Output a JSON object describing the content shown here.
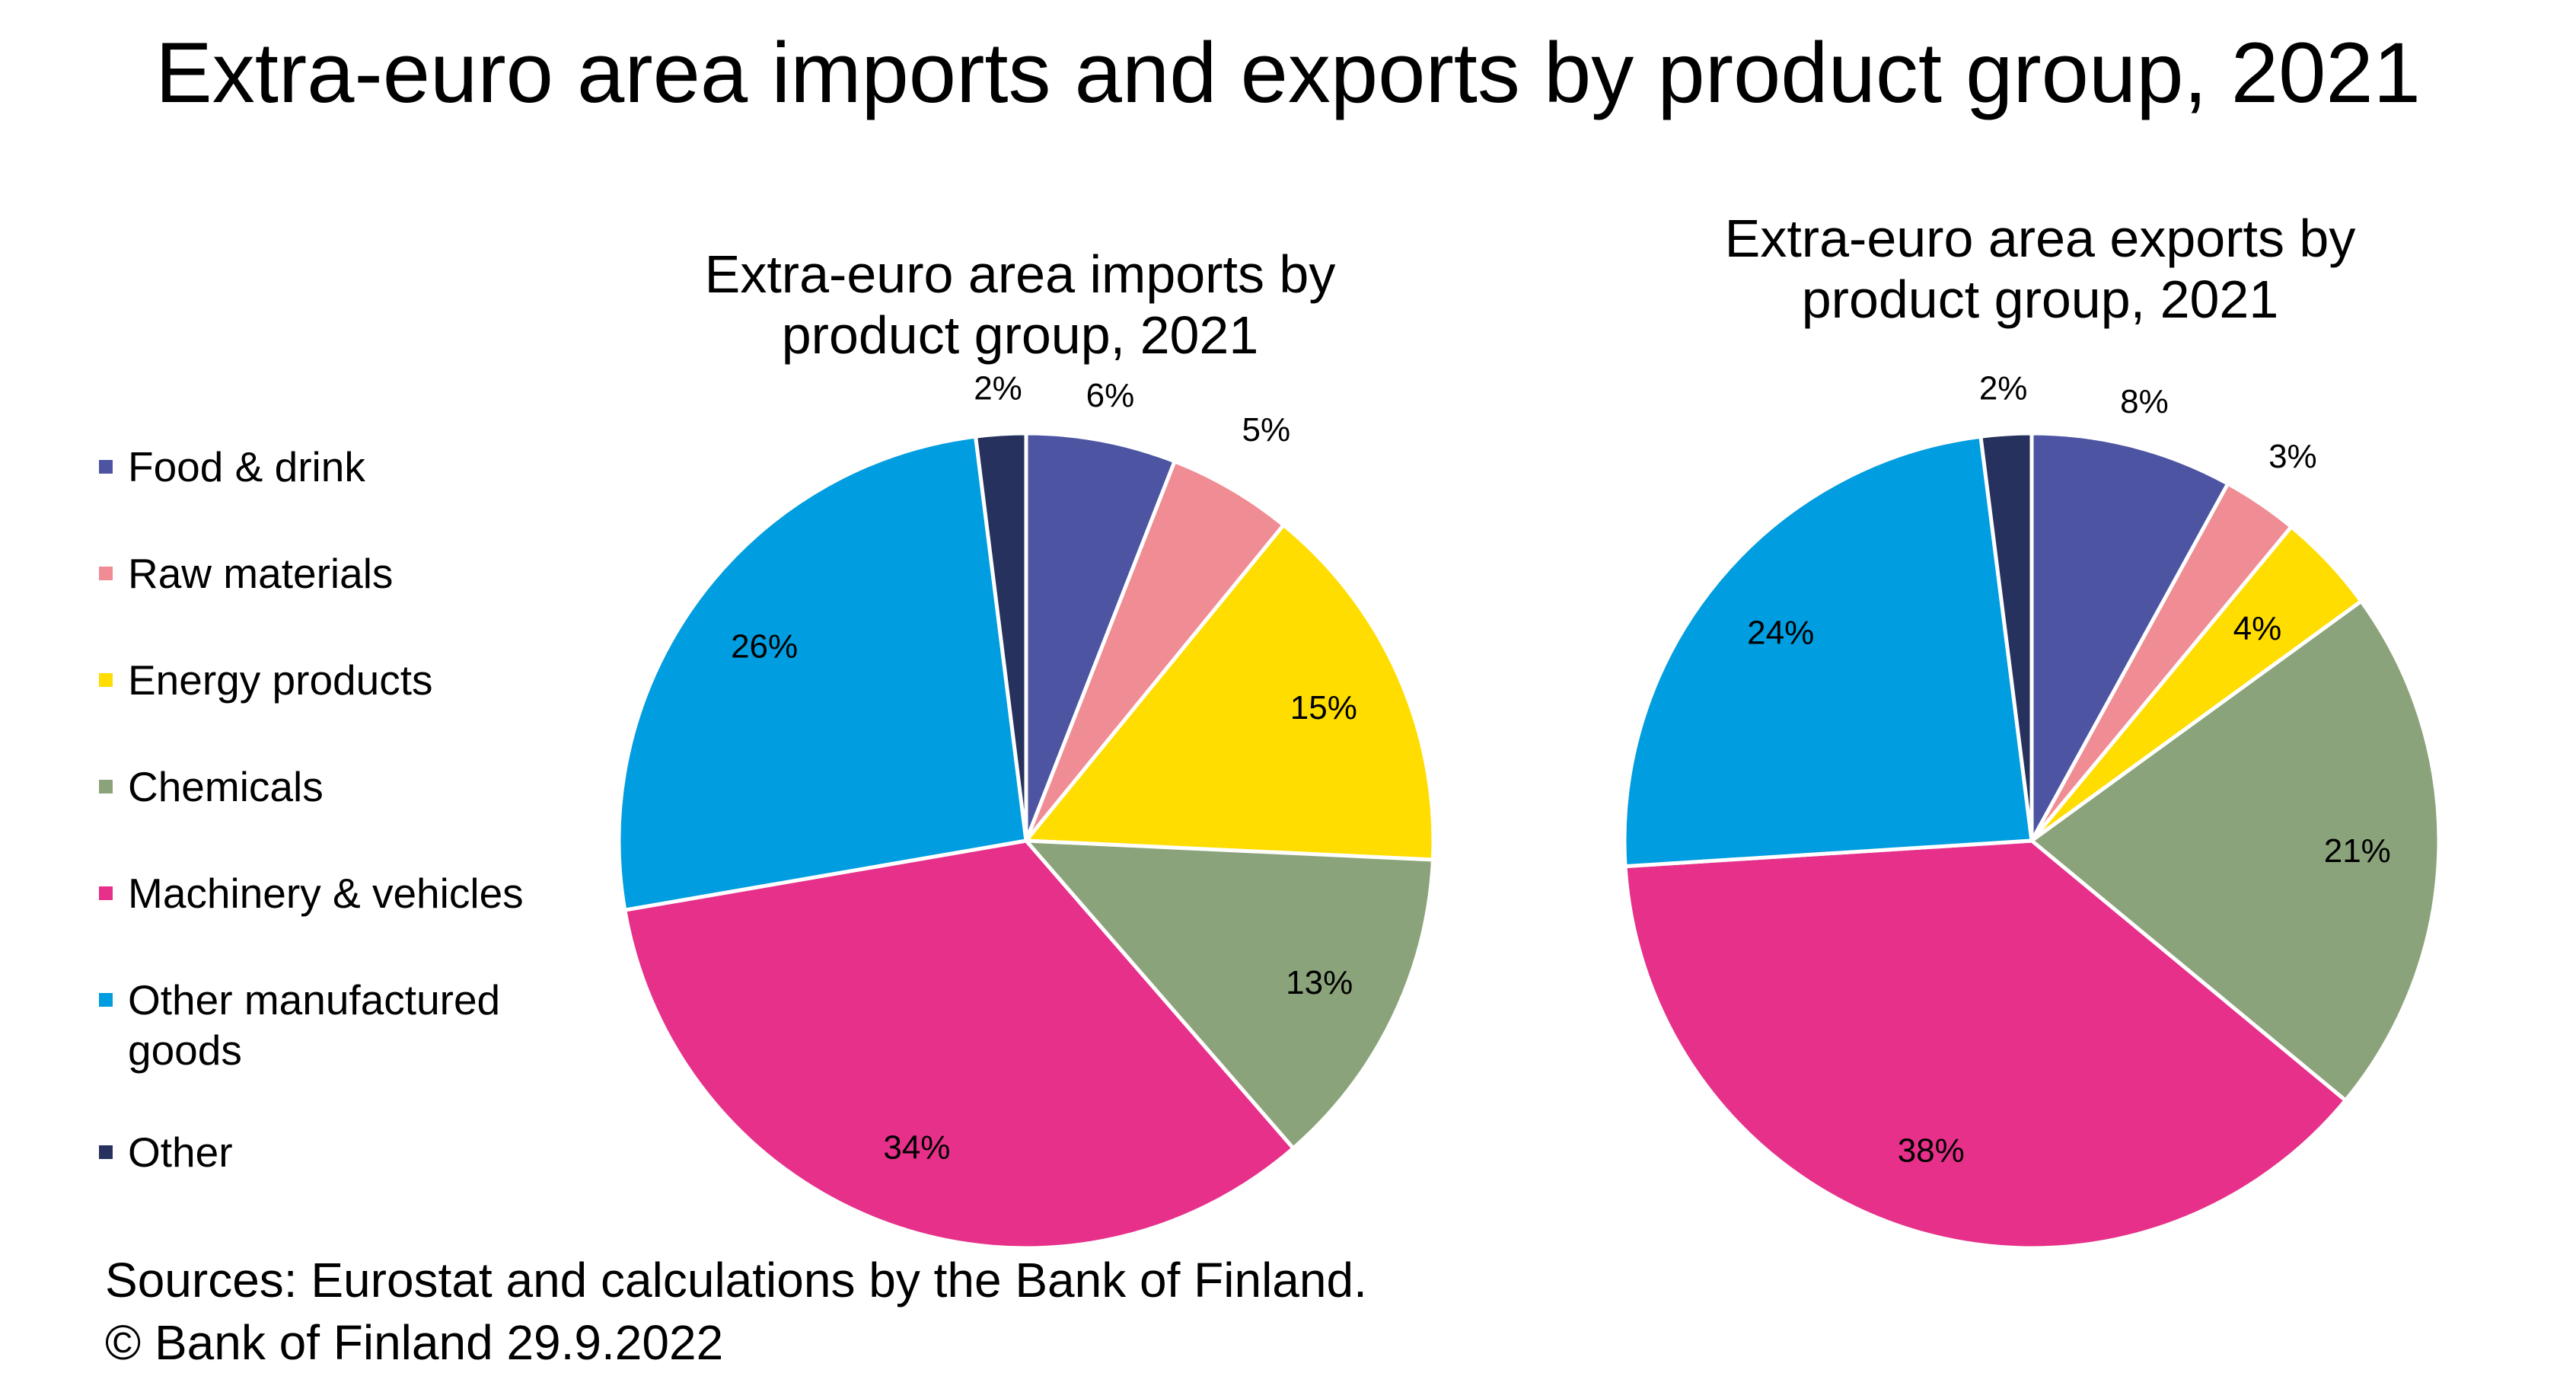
{
  "title": "Extra-euro area imports and exports by product group, 2021",
  "legend": [
    {
      "label": "Food & drink",
      "color": "#4D54A2"
    },
    {
      "label": "Raw materials",
      "color": "#F08C93"
    },
    {
      "label": "Energy products",
      "color": "#FFDD00"
    },
    {
      "label": "Chemicals",
      "color": "#8BA37A"
    },
    {
      "label": "Machinery & vehicles",
      "color": "#E6308A"
    },
    {
      "label": "Other manufactured goods",
      "color": "#009DE0"
    },
    {
      "label": "Other",
      "color": "#27315E"
    }
  ],
  "chart_data": [
    {
      "type": "pie",
      "title_lines": [
        "Extra-euro area imports by",
        "product group, 2021"
      ],
      "categories": [
        "Food & drink",
        "Raw materials",
        "Energy products",
        "Chemicals",
        "Machinery & vehicles",
        "Other manufactured goods",
        "Other"
      ],
      "values": [
        6,
        5,
        15,
        13,
        34,
        26,
        2
      ],
      "labels": [
        "6%",
        "5%",
        "15%",
        "13%",
        "34%",
        "26%",
        "2%"
      ],
      "colors": [
        "#4D54A2",
        "#F08C93",
        "#FFDD00",
        "#8BA37A",
        "#E6308A",
        "#009DE0",
        "#27315E"
      ]
    },
    {
      "type": "pie",
      "title_lines": [
        "Extra-euro area exports by",
        "product group, 2021"
      ],
      "categories": [
        "Food & drink",
        "Raw materials",
        "Energy products",
        "Chemicals",
        "Machinery & vehicles",
        "Other manufactured goods",
        "Other"
      ],
      "values": [
        8,
        3,
        4,
        21,
        38,
        24,
        2
      ],
      "labels": [
        "8%",
        "3%",
        "4%",
        "21%",
        "38%",
        "24%",
        "2%"
      ],
      "colors": [
        "#4D54A2",
        "#F08C93",
        "#FFDD00",
        "#8BA37A",
        "#E6308A",
        "#009DE0",
        "#27315E"
      ]
    }
  ],
  "footer": {
    "sources": "Sources: Eurostat and calculations by the Bank of Finland.",
    "copyright": "© Bank of Finland 29.9.2022"
  }
}
